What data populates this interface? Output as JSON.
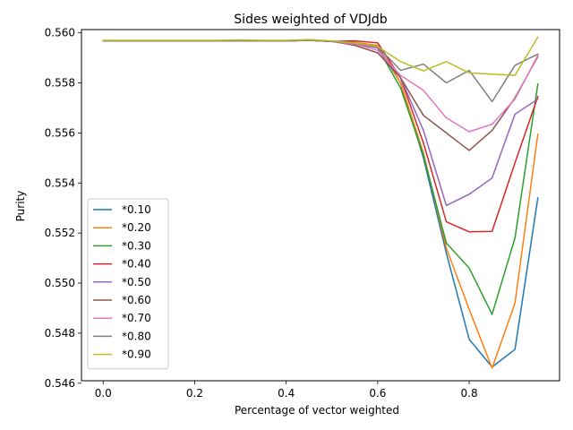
{
  "chart_data": {
    "type": "line",
    "title": "Sides weighted of VDJdb",
    "xlabel": "Percentage of vector weighted",
    "ylabel": "Purity",
    "xlim": [
      -0.0475,
      0.9975
    ],
    "ylim": [
      0.5461,
      0.56013
    ],
    "x_ticks": [
      0.0,
      0.2,
      0.4,
      0.6,
      0.8
    ],
    "x_tick_labels": [
      "0.0",
      "0.2",
      "0.4",
      "0.6",
      "0.8"
    ],
    "y_ticks": [
      0.546,
      0.548,
      0.55,
      0.552,
      0.554,
      0.556,
      0.558,
      0.56
    ],
    "y_tick_labels": [
      "0.546",
      "0.548",
      "0.550",
      "0.552",
      "0.554",
      "0.556",
      "0.558",
      "0.560"
    ],
    "grid": false,
    "legend_position": "lower-left",
    "x": [
      0.0,
      0.05,
      0.1,
      0.15,
      0.2,
      0.25,
      0.3,
      0.35,
      0.4,
      0.45,
      0.5,
      0.55,
      0.6,
      0.65,
      0.7,
      0.75,
      0.8,
      0.85,
      0.9,
      0.95
    ],
    "series": [
      {
        "name": "*0.10",
        "color": "#1f77b4",
        "values": [
          0.55968,
          0.55968,
          0.55968,
          0.55968,
          0.55968,
          0.55968,
          0.55968,
          0.55968,
          0.55968,
          0.5597,
          0.55965,
          0.55955,
          0.55945,
          0.558,
          0.555,
          0.5512,
          0.54775,
          0.54665,
          0.54735,
          0.5534
        ]
      },
      {
        "name": "*0.20",
        "color": "#ff7f0e",
        "values": [
          0.55968,
          0.55968,
          0.55968,
          0.55968,
          0.55968,
          0.55968,
          0.55968,
          0.55968,
          0.55968,
          0.5597,
          0.55966,
          0.55962,
          0.5595,
          0.558,
          0.5552,
          0.5514,
          0.54895,
          0.5466,
          0.5492,
          0.55595
        ]
      },
      {
        "name": "*0.30",
        "color": "#2ca02c",
        "values": [
          0.55968,
          0.55968,
          0.55968,
          0.55968,
          0.55968,
          0.55968,
          0.55968,
          0.55968,
          0.55968,
          0.5597,
          0.55966,
          0.55955,
          0.5594,
          0.5578,
          0.5551,
          0.5516,
          0.5506,
          0.54875,
          0.5518,
          0.55795
        ]
      },
      {
        "name": "*0.40",
        "color": "#d62728",
        "values": [
          0.55968,
          0.55968,
          0.55968,
          0.55968,
          0.55968,
          0.55968,
          0.55968,
          0.55968,
          0.55968,
          0.5597,
          0.55966,
          0.55968,
          0.5596,
          0.5582,
          0.5556,
          0.55245,
          0.55205,
          0.55207,
          0.5548,
          0.55745
        ]
      },
      {
        "name": "*0.50",
        "color": "#9467bd",
        "values": [
          0.55968,
          0.55968,
          0.55968,
          0.55968,
          0.55968,
          0.55968,
          0.55968,
          0.55968,
          0.55968,
          0.5597,
          0.55966,
          0.55955,
          0.5594,
          0.5582,
          0.5561,
          0.5531,
          0.55355,
          0.5542,
          0.55675,
          0.55735
        ]
      },
      {
        "name": "*0.60",
        "color": "#8c564b",
        "values": [
          0.55968,
          0.55968,
          0.55968,
          0.55968,
          0.55968,
          0.55968,
          0.55968,
          0.55968,
          0.55968,
          0.5597,
          0.55966,
          0.5595,
          0.5592,
          0.5582,
          0.5567,
          0.556,
          0.5553,
          0.5561,
          0.5574,
          0.55905
        ]
      },
      {
        "name": "*0.70",
        "color": "#e377c2",
        "values": [
          0.55968,
          0.55968,
          0.55968,
          0.55968,
          0.55968,
          0.55968,
          0.55968,
          0.55968,
          0.55968,
          0.5597,
          0.55966,
          0.55955,
          0.5593,
          0.5583,
          0.5577,
          0.5566,
          0.55605,
          0.55635,
          0.55735,
          0.5591
        ]
      },
      {
        "name": "*0.80",
        "color": "#7f7f7f",
        "values": [
          0.55968,
          0.55968,
          0.55968,
          0.55968,
          0.55968,
          0.55968,
          0.55968,
          0.55968,
          0.55968,
          0.5597,
          0.55966,
          0.5596,
          0.55945,
          0.5585,
          0.55875,
          0.558,
          0.5585,
          0.55725,
          0.5587,
          0.55915
        ]
      },
      {
        "name": "*0.90",
        "color": "#bcbd22",
        "values": [
          0.5597,
          0.5597,
          0.5597,
          0.5597,
          0.5597,
          0.5597,
          0.55972,
          0.5597,
          0.5597,
          0.55973,
          0.55968,
          0.5596,
          0.55945,
          0.55885,
          0.55848,
          0.55885,
          0.5584,
          0.55835,
          0.5583,
          0.55983
        ]
      }
    ]
  }
}
